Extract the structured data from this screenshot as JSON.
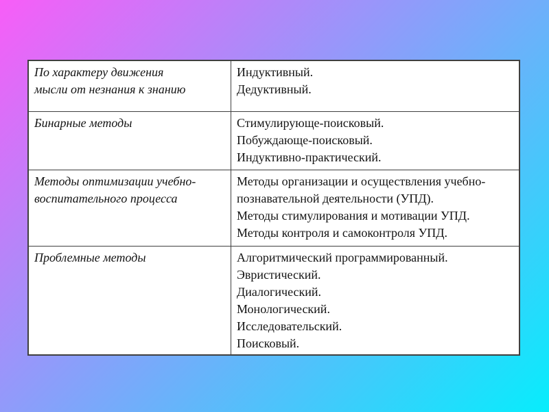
{
  "theme": {
    "gradient_start": "#f85df8",
    "gradient_end": "#07edfc",
    "table_background": "#ffffff",
    "border_color": "#3f3f3f",
    "text_color": "#141414"
  },
  "table": {
    "rows": [
      {
        "left": [
          "По характеру движения",
          "мысли от незнания к знанию"
        ],
        "right": [
          "Индуктивный.",
          "Дедуктивный."
        ]
      },
      {
        "left": [
          "Бинарные методы"
        ],
        "right": [
          "Стимулирующе-поисковый.",
          "Побуждающе-поисковый.",
          "Индуктивно-практический."
        ]
      },
      {
        "left": [
          "Методы оптимизации учебно-",
          "воспитательного процесса"
        ],
        "right": [
          "Методы организации и осуществления учебно-",
          "познавательной деятельности (УПД).",
          "Методы стимулирования и мотивации УПД.",
          "Методы контроля и самоконтроля УПД."
        ]
      },
      {
        "left": [
          "Проблемные методы"
        ],
        "right": [
          "Алгоритмический программированный.",
          "Эвристический.",
          "Диалогический.",
          "Монологический.",
          "Исследовательский.",
          "Поисковый."
        ]
      }
    ]
  }
}
